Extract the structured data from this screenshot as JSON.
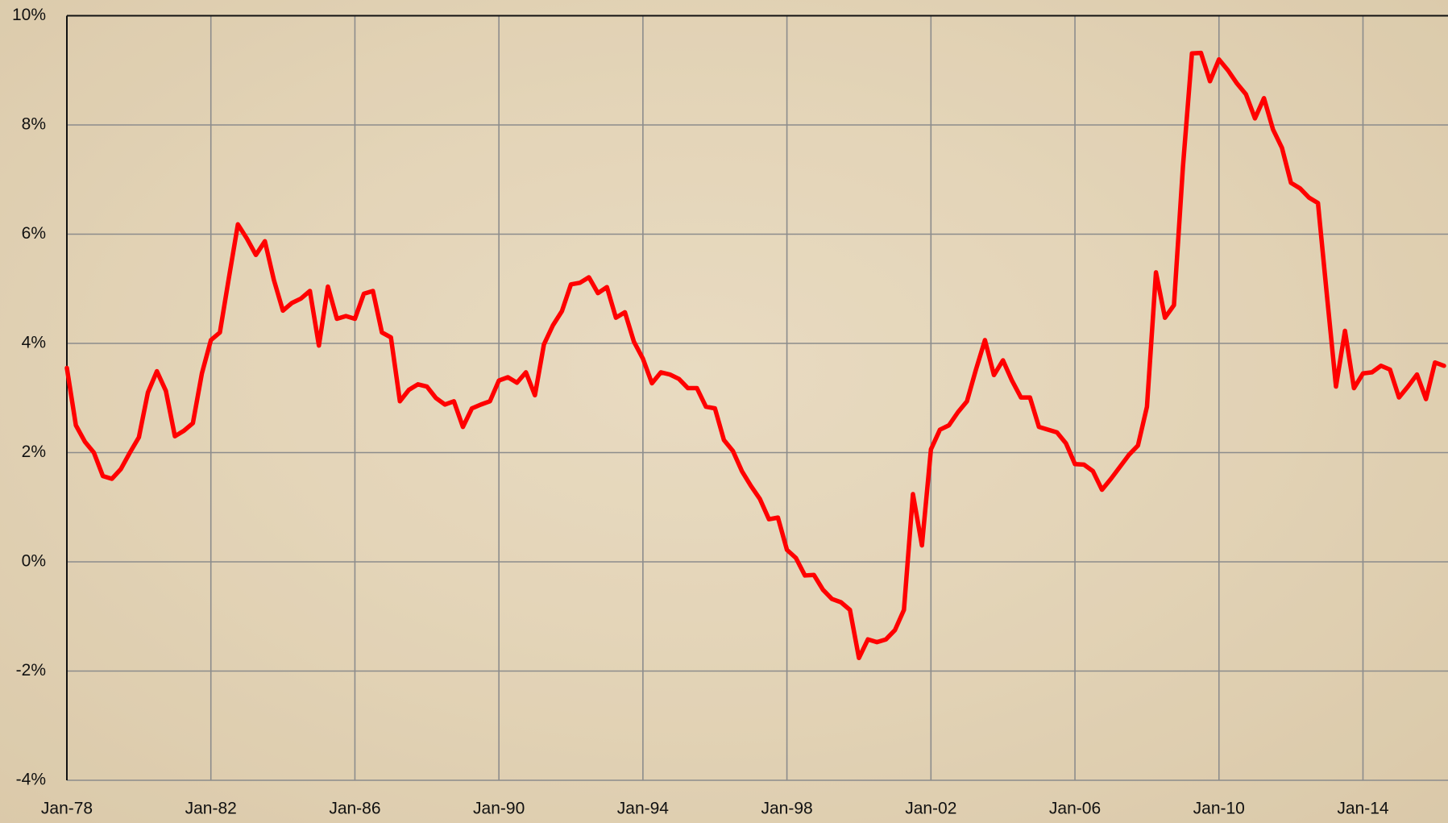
{
  "chart_data": {
    "type": "line",
    "color": "#ff0000",
    "grid": true,
    "ylim": [
      -4,
      10
    ],
    "yticks": [
      {
        "value": -4,
        "label": "-4%"
      },
      {
        "value": -2,
        "label": "-2%"
      },
      {
        "value": 0,
        "label": "0%"
      },
      {
        "value": 2,
        "label": "2%"
      },
      {
        "value": 4,
        "label": "4%"
      },
      {
        "value": 6,
        "label": "6%"
      },
      {
        "value": 8,
        "label": "8%"
      },
      {
        "value": 10,
        "label": "10%"
      }
    ],
    "categories": [
      "Jan-78",
      null,
      null,
      null,
      null,
      null,
      null,
      null,
      null,
      null,
      null,
      null,
      null,
      null,
      null,
      null,
      "Jan-82",
      null,
      null,
      null,
      null,
      null,
      null,
      null,
      null,
      null,
      null,
      null,
      null,
      null,
      null,
      null,
      "Jan-86",
      null,
      null,
      null,
      null,
      null,
      null,
      null,
      null,
      null,
      null,
      null,
      null,
      null,
      null,
      null,
      "Jan-90",
      null,
      null,
      null,
      null,
      null,
      null,
      null,
      null,
      null,
      null,
      null,
      null,
      null,
      null,
      null,
      "Jan-94",
      null,
      null,
      null,
      null,
      null,
      null,
      null,
      null,
      null,
      null,
      null,
      null,
      null,
      null,
      null,
      "Jan-98",
      null,
      null,
      null,
      null,
      null,
      null,
      null,
      null,
      null,
      null,
      null,
      null,
      null,
      null,
      null,
      "Jan-02",
      null,
      null,
      null,
      null,
      null,
      null,
      null,
      null,
      null,
      null,
      null,
      null,
      null,
      null,
      null,
      "Jan-06",
      null,
      null,
      null,
      null,
      null,
      null,
      null,
      null,
      null,
      null,
      null,
      null,
      null,
      null,
      null,
      "Jan-10",
      null,
      null,
      null,
      null,
      null,
      null,
      null,
      null,
      null,
      null,
      null,
      null,
      null,
      null,
      null,
      "Jan-14",
      null,
      null,
      null,
      null,
      null,
      null,
      null,
      null,
      null
    ],
    "values": [
      3.55,
      2.5,
      2.2,
      2.0,
      1.57,
      1.52,
      1.7,
      2.0,
      2.28,
      3.1,
      3.49,
      3.13,
      2.3,
      2.4,
      2.54,
      3.45,
      4.06,
      4.2,
      5.2,
      6.18,
      5.92,
      5.62,
      5.87,
      5.16,
      4.6,
      4.74,
      4.82,
      4.96,
      3.96,
      5.04,
      4.45,
      4.5,
      4.45,
      4.91,
      4.96,
      4.2,
      4.11,
      2.94,
      3.15,
      3.25,
      3.21,
      3.0,
      2.88,
      2.94,
      2.47,
      2.81,
      2.88,
      2.94,
      3.32,
      3.38,
      3.28,
      3.47,
      3.05,
      3.98,
      4.33,
      4.59,
      5.08,
      5.11,
      5.21,
      4.92,
      5.03,
      4.47,
      4.57,
      4.03,
      3.72,
      3.27,
      3.47,
      3.43,
      3.35,
      3.18,
      3.18,
      2.84,
      2.81,
      2.23,
      2.03,
      1.66,
      1.39,
      1.15,
      0.78,
      0.81,
      0.22,
      0.07,
      -0.25,
      -0.24,
      -0.51,
      -0.68,
      -0.74,
      -0.88,
      -1.76,
      -1.42,
      -1.47,
      -1.42,
      -1.25,
      -0.88,
      1.24,
      0.3,
      2.06,
      2.42,
      2.5,
      2.74,
      2.94,
      3.52,
      4.06,
      3.42,
      3.69,
      3.32,
      3.01,
      3.01,
      2.47,
      2.42,
      2.37,
      2.17,
      1.79,
      1.78,
      1.66,
      1.32,
      1.52,
      1.74,
      1.96,
      2.13,
      2.84,
      5.3,
      4.47,
      4.7,
      7.24,
      9.31,
      9.32,
      8.8,
      9.2,
      9.0,
      8.76,
      8.56,
      8.12,
      8.49,
      7.92,
      7.58,
      6.94,
      6.84,
      6.67,
      6.57,
      4.87,
      3.21,
      4.23,
      3.18,
      3.45,
      3.47,
      3.59,
      3.52,
      3.01,
      3.21,
      3.43,
      2.98,
      3.65,
      3.59
    ]
  }
}
